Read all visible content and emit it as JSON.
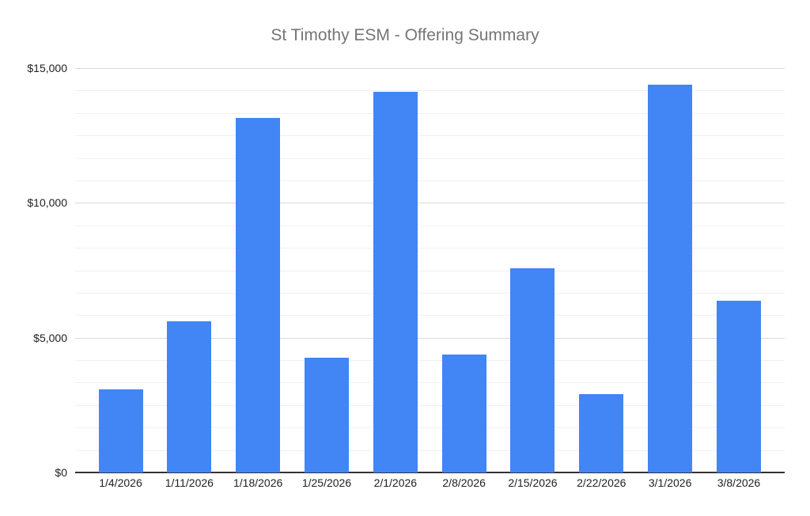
{
  "chart_data": {
    "type": "bar",
    "title": "St Timothy ESM - Offering Summary",
    "categories": [
      "1/4/2026",
      "1/11/2026",
      "1/18/2026",
      "1/25/2026",
      "2/1/2026",
      "2/8/2026",
      "2/15/2026",
      "2/22/2026",
      "3/1/2026",
      "3/8/2026"
    ],
    "values": [
      3080,
      5610,
      13150,
      4260,
      14120,
      4370,
      7570,
      2910,
      14380,
      6370
    ],
    "xlabel": "",
    "ylabel": "",
    "ylim": [
      0,
      15000
    ],
    "y_major_tick_values": [
      0,
      5000,
      10000,
      15000
    ],
    "y_major_tick_labels": [
      "$0",
      "$5,000",
      "$10,000",
      "$15,000"
    ],
    "minor_divisions_per_major": 6,
    "grid": "major and minor horizontal gridlines",
    "legend_position": "none",
    "colors": {
      "bar": "#4285F4",
      "title": "#757575",
      "tick_label": "#222222",
      "major_gridline": "#d9d9d9",
      "minor_gridline": "#f0f0f0",
      "baseline": "#333333",
      "background": "#ffffff"
    }
  }
}
